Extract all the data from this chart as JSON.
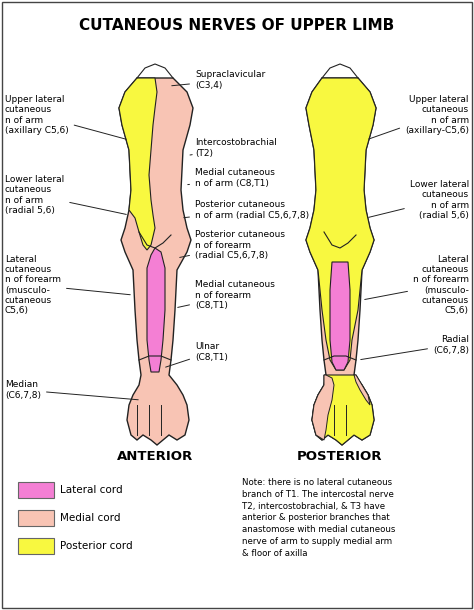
{
  "title": "CUTANEOUS NERVES OF UPPER LIMB",
  "bg_color": "#ffffff",
  "lc": "#f47fd4",
  "mc": "#f8c4b4",
  "pc": "#f8f840",
  "oc": "#222222",
  "anterior_label": "ANTERIOR",
  "posterior_label": "POSTERIOR",
  "legend": [
    {
      "color": "#f47fd4",
      "label": "Lateral cord"
    },
    {
      "color": "#f8c4b4",
      "label": "Medial cord"
    },
    {
      "color": "#f8f840",
      "label": "Posterior cord"
    }
  ],
  "note_text": "Note: there is no lateral cutaneous\nbranch of T1. The intercostal nerve\nT2, intercostobrachial, & T3 have\nanterior & posterior branches that\nanastomose with medial cutaneous\nnerve of arm to supply medial arm\n& floor of axilla"
}
